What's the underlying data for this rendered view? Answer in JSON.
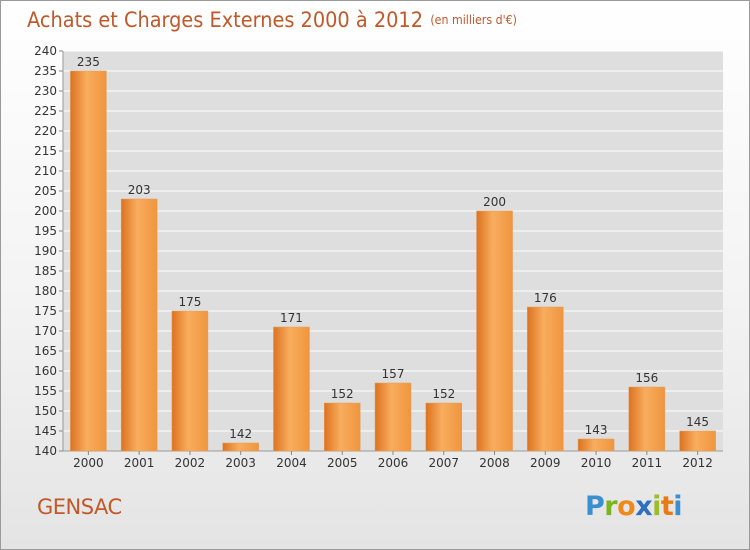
{
  "chart_data": {
    "type": "bar",
    "title": "Achats et Charges Externes 2000 à 2012",
    "subtitle": "(en milliers d'€)",
    "xlabel": "",
    "ylabel": "",
    "categories": [
      "2000",
      "2001",
      "2002",
      "2003",
      "2004",
      "2005",
      "2006",
      "2007",
      "2008",
      "2009",
      "2010",
      "2011",
      "2012"
    ],
    "values": [
      235,
      203,
      175,
      142,
      171,
      152,
      157,
      152,
      200,
      176,
      143,
      156,
      145
    ],
    "ylim": [
      140,
      240
    ],
    "ytick_step": 5,
    "grid": true,
    "bar_color": "#f0953e",
    "bar_color_light": "#f8ad5e",
    "bar_color_dark": "#dc7220"
  },
  "footer": {
    "commune": "GENSAC"
  },
  "logo": {
    "text": "Proxiti",
    "letters": [
      {
        "char": "P",
        "color": "#3a8fd0"
      },
      {
        "char": "r",
        "color": "#7ab51d"
      },
      {
        "char": "o",
        "color": "#ef8a1a"
      },
      {
        "char": "x",
        "color": "#2e6fbf"
      },
      {
        "char": "i",
        "color": "#9cbd2a"
      },
      {
        "char": "t",
        "color": "#e87b14"
      },
      {
        "char": "i",
        "color": "#3a8fd0"
      }
    ]
  },
  "colors": {
    "accent": "#c0582a",
    "grid": "#ffffff",
    "plot_bg": "#dedede"
  }
}
